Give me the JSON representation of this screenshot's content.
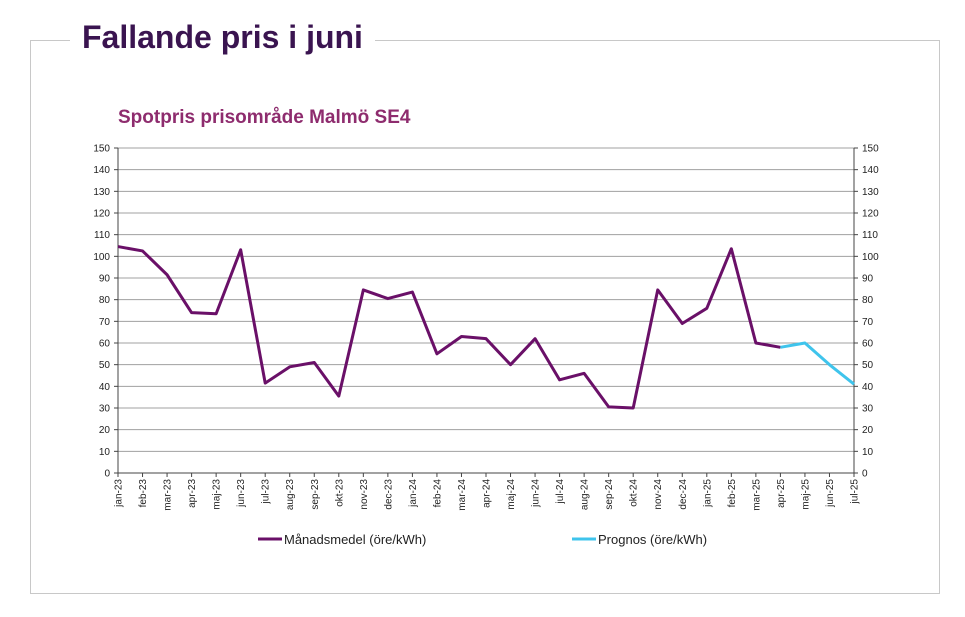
{
  "page": {
    "heading": "Fallande pris i juni"
  },
  "colors": {
    "actual": "#6a1068",
    "forecast": "#3fc4ec",
    "title": "#8e2c6e",
    "heading": "#3a1450"
  },
  "chart_data": {
    "type": "line",
    "title": "Spotpris prisområde Malmö SE4",
    "xlabel": "",
    "ylabel": "",
    "ylim": [
      0,
      150
    ],
    "yticks": [
      0,
      10,
      20,
      30,
      40,
      50,
      60,
      70,
      80,
      90,
      100,
      110,
      120,
      130,
      140,
      150
    ],
    "grid": true,
    "legend_position": "bottom",
    "categories": [
      "jan-23",
      "feb-23",
      "mar-23",
      "apr-23",
      "maj-23",
      "jun-23",
      "jul-23",
      "aug-23",
      "sep-23",
      "okt-23",
      "nov-23",
      "dec-23",
      "jan-24",
      "feb-24",
      "mar-24",
      "apr-24",
      "maj-24",
      "jun-24",
      "jul-24",
      "aug-24",
      "sep-24",
      "okt-24",
      "nov-24",
      "dec-24",
      "jan-25",
      "feb-25",
      "mar-25",
      "apr-25",
      "maj-25",
      "jun-25",
      "jul-25"
    ],
    "series": [
      {
        "name": "Månadsmedel (öre/kWh)",
        "color": "#6a1068",
        "values": [
          104.5,
          102.5,
          91.5,
          74,
          73.5,
          103,
          41.5,
          49,
          51,
          35.5,
          84.5,
          80.5,
          83.5,
          55,
          63,
          62,
          50,
          62,
          43,
          46,
          30.5,
          30,
          84.5,
          69,
          76,
          103.5,
          60,
          58,
          null,
          null,
          null
        ]
      },
      {
        "name": "Prognos (öre/kWh)",
        "color": "#3fc4ec",
        "values": [
          null,
          null,
          null,
          null,
          null,
          null,
          null,
          null,
          null,
          null,
          null,
          null,
          null,
          null,
          null,
          null,
          null,
          null,
          null,
          null,
          null,
          null,
          null,
          null,
          null,
          null,
          null,
          58,
          60,
          50,
          41
        ]
      }
    ]
  }
}
